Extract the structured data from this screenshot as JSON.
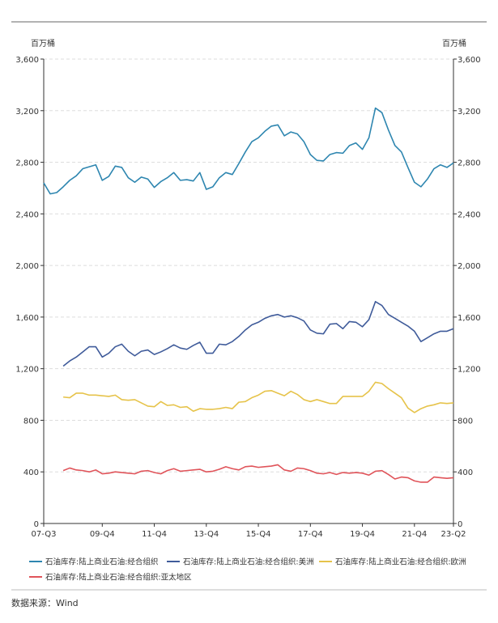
{
  "chart_data": {
    "type": "line",
    "y_unit_left": "百万桶",
    "y_unit_right": "百万桶",
    "ylim": [
      0,
      3600
    ],
    "yticks": [
      0,
      400,
      800,
      1200,
      1600,
      2000,
      2400,
      2800,
      3200,
      3600
    ],
    "ytick_labels": [
      "0",
      "400",
      "800",
      "1,200",
      "1,600",
      "2,000",
      "2,400",
      "2,800",
      "3,200",
      "3,600"
    ],
    "x_tick_labels": [
      "07-Q3",
      "09-Q4",
      "11-Q4",
      "13-Q4",
      "15-Q4",
      "17-Q4",
      "19-Q4",
      "21-Q4",
      "23-Q2"
    ],
    "x_tick_index": [
      0,
      9,
      17,
      25,
      33,
      41,
      49,
      57,
      63
    ],
    "grid": "horizontal-dashed",
    "legend_position": "bottom",
    "series": [
      {
        "name": "石油库存:陆上商业石油:经合组织",
        "color": "#2e86b0",
        "start_index": 0,
        "values": [
          2640,
          2555,
          2565,
          2610,
          2660,
          2695,
          2750,
          2765,
          2780,
          2660,
          2690,
          2770,
          2760,
          2680,
          2645,
          2685,
          2670,
          2605,
          2650,
          2680,
          2720,
          2660,
          2665,
          2655,
          2720,
          2590,
          2610,
          2680,
          2720,
          2705,
          2790,
          2880,
          2960,
          2990,
          3040,
          3080,
          3090,
          3005,
          3035,
          3020,
          2960,
          2860,
          2815,
          2810,
          2860,
          2875,
          2870,
          2930,
          2950,
          2900,
          2990,
          3220,
          3185,
          3050,
          2930,
          2880,
          2760,
          2645,
          2610,
          2670,
          2750,
          2780,
          2760,
          2795
        ]
      },
      {
        "name": "石油库存:陆上商业石油:经合组织:美洲",
        "color": "#3f5b9a",
        "start_index": 3,
        "values": [
          1220,
          1260,
          1290,
          1330,
          1370,
          1370,
          1290,
          1320,
          1370,
          1390,
          1335,
          1300,
          1335,
          1345,
          1310,
          1330,
          1355,
          1385,
          1360,
          1350,
          1380,
          1405,
          1320,
          1320,
          1390,
          1385,
          1410,
          1450,
          1500,
          1540,
          1560,
          1590,
          1610,
          1620,
          1600,
          1610,
          1595,
          1570,
          1500,
          1475,
          1470,
          1545,
          1550,
          1510,
          1565,
          1560,
          1525,
          1580,
          1720,
          1690,
          1620,
          1590,
          1560,
          1530,
          1490,
          1410,
          1440,
          1470,
          1490,
          1490,
          1510
        ]
      },
      {
        "name": "石油库存:陆上商业石油:经合组织:欧洲",
        "color": "#e6c34a",
        "start_index": 3,
        "values": [
          980,
          975,
          1010,
          1010,
          995,
          995,
          990,
          985,
          995,
          960,
          955,
          960,
          935,
          910,
          905,
          945,
          915,
          920,
          900,
          905,
          870,
          890,
          885,
          885,
          890,
          900,
          890,
          940,
          945,
          975,
          995,
          1025,
          1030,
          1010,
          990,
          1025,
          1000,
          960,
          945,
          960,
          945,
          930,
          930,
          985,
          985,
          985,
          985,
          1025,
          1095,
          1085,
          1045,
          1010,
          975,
          895,
          860,
          890,
          910,
          920,
          935,
          930,
          935
        ]
      },
      {
        "name": "石油库存:陆上商业石油:经合组织:亚太地区",
        "color": "#e0545a",
        "start_index": 3,
        "values": [
          410,
          430,
          415,
          410,
          400,
          415,
          385,
          390,
          400,
          395,
          390,
          385,
          405,
          410,
          395,
          385,
          410,
          425,
          405,
          410,
          415,
          420,
          400,
          405,
          420,
          440,
          425,
          415,
          440,
          445,
          435,
          440,
          445,
          455,
          415,
          405,
          430,
          425,
          410,
          390,
          385,
          395,
          380,
          395,
          390,
          395,
          390,
          375,
          405,
          410,
          380,
          345,
          360,
          355,
          330,
          320,
          320,
          360,
          355,
          350,
          355
        ]
      }
    ]
  },
  "footer": {
    "source": "数据来源：Wind"
  }
}
